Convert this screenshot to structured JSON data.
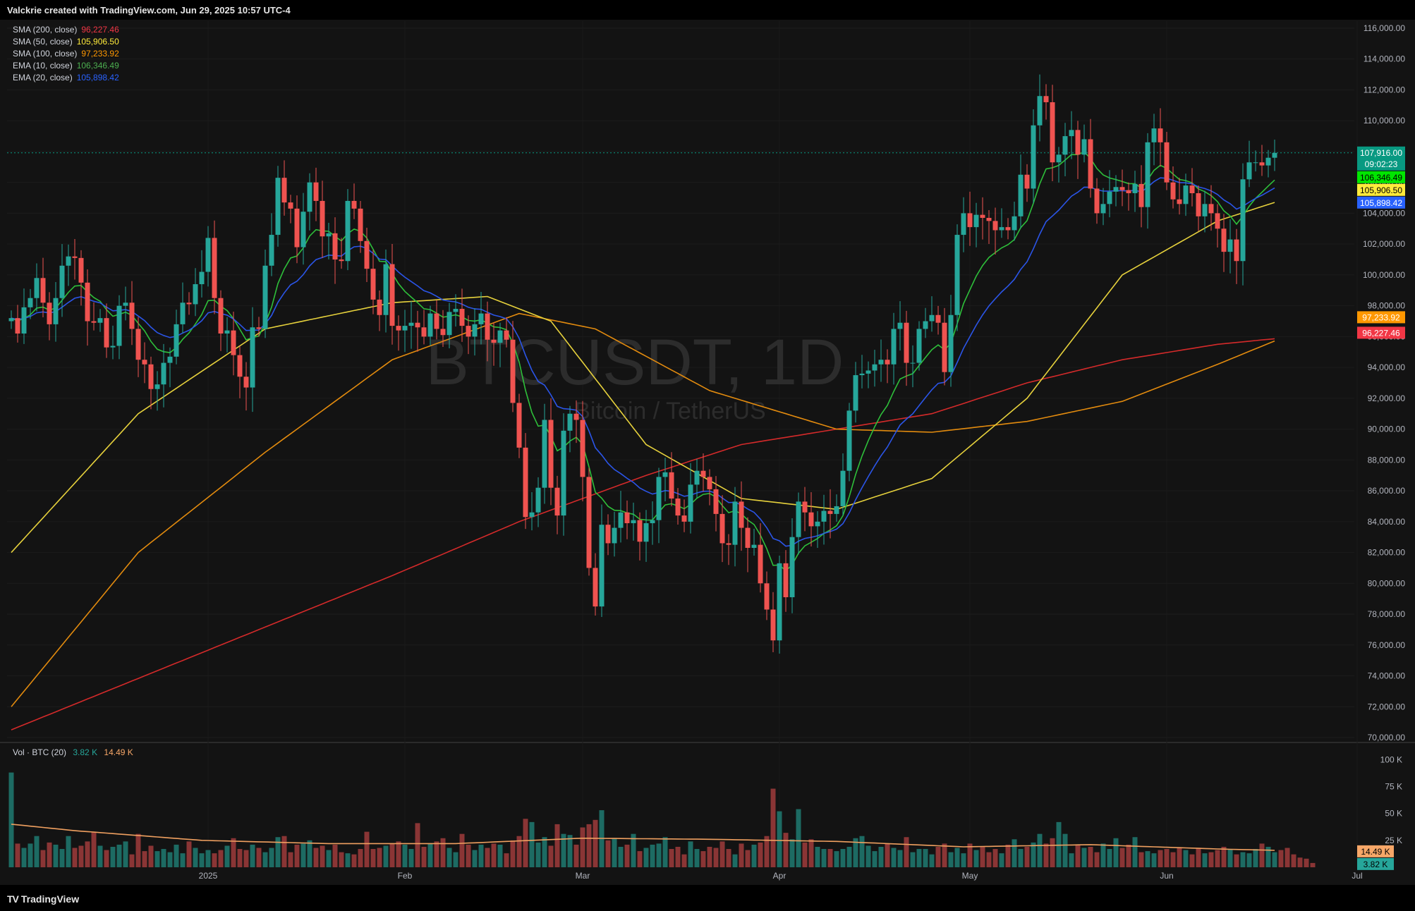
{
  "header": {
    "text": "Valckrie created with TradingView.com, Jun 29, 2025 10:57 UTC-4"
  },
  "footer": {
    "logo_text": "TradingView",
    "logo_mark": "TV"
  },
  "watermark": {
    "symbol": "BTCUSDT, 1D",
    "name": "Bitcoin / TetherUS"
  },
  "legend": [
    {
      "name": "SMA (200, close)",
      "value": "96,227.46",
      "color": "#f23645"
    },
    {
      "name": "SMA (50, close)",
      "value": "105,906.50",
      "color": "#ffeb3b"
    },
    {
      "name": "SMA (100, close)",
      "value": "97,233.92",
      "color": "#ff9800"
    },
    {
      "name": "EMA (10, close)",
      "value": "106,346.49",
      "color": "#4caf50"
    },
    {
      "name": "EMA (20, close)",
      "value": "105,898.42",
      "color": "#2962ff"
    }
  ],
  "volume_legend": {
    "name": "Vol · BTC (20)",
    "value1": "3.82 K",
    "value2": "14.49 K"
  },
  "colors": {
    "up": "#26a69a",
    "down": "#ef5350",
    "background": "#131313",
    "grid": "#1f1f1f"
  },
  "chart_data": {
    "type": "candlestick",
    "symbol": "BTCUSDT",
    "interval": "1D",
    "y_axis": {
      "ylim": [
        70000,
        116000
      ],
      "ticks": [
        "70,000.00",
        "72,000.00",
        "74,000.00",
        "76,000.00",
        "78,000.00",
        "80,000.00",
        "82,000.00",
        "84,000.00",
        "86,000.00",
        "88,000.00",
        "90,000.00",
        "92,000.00",
        "94,000.00",
        "96,000.00",
        "98,000.00",
        "100,000.00",
        "102,000.00",
        "104,000.00",
        "106,000.00",
        "108,000.00",
        "110,000.00",
        "112,000.00",
        "114,000.00",
        "116,000.00"
      ]
    },
    "x_axis": {
      "labels": [
        "2025",
        "Feb",
        "Mar",
        "Apr",
        "May",
        "Jun",
        "Jul"
      ],
      "label_dates": [
        "2025-01-01",
        "2025-02-01",
        "2025-03-01",
        "2025-04-01",
        "2025-05-01",
        "2025-06-01",
        "2025-07-01"
      ],
      "first_date": "2024-12-01",
      "last_date": "2025-07-01"
    },
    "price_close": 107916,
    "countdown": "09:02:23",
    "price_labels": [
      {
        "value": 107916,
        "text": "107,916.00",
        "color": "#089981"
      },
      {
        "value": 106346.49,
        "text": "106,346.49",
        "color": "#00e600"
      },
      {
        "value": 105906.5,
        "text": "105,906.50",
        "color": "#ffeb3b"
      },
      {
        "value": 105898.42,
        "text": "105,898.42",
        "color": "#2962ff"
      },
      {
        "value": 97233.92,
        "text": "97,233.92",
        "color": "#ff9800"
      },
      {
        "value": 96227.46,
        "text": "96,227.46",
        "color": "#f23645"
      }
    ],
    "closes": [
      97200,
      96200,
      97900,
      98500,
      99800,
      98200,
      96800,
      98500,
      100600,
      101200,
      101100,
      99500,
      97000,
      96900,
      97200,
      95300,
      95400,
      98000,
      98200,
      96500,
      94500,
      94200,
      92600,
      92900,
      94300,
      94700,
      96800,
      98200,
      98100,
      99400,
      100200,
      102400,
      98500,
      96200,
      96400,
      94800,
      93400,
      92700,
      96600,
      96500,
      100600,
      102600,
      106300,
      104700,
      104300,
      101800,
      104100,
      106000,
      104800,
      102500,
      102700,
      101000,
      100900,
      104800,
      104300,
      102200,
      100400,
      98400,
      97400,
      100700,
      96700,
      96400,
      96700,
      96900,
      96600,
      96000,
      97500,
      96500,
      96100,
      97600,
      97800,
      96700,
      96000,
      96800,
      97500,
      95800,
      95600,
      96400,
      95800,
      91700,
      88800,
      84300,
      84600,
      86200,
      90600,
      86200,
      84400,
      89900,
      91000,
      90600,
      86900,
      81000,
      78500,
      83800,
      82600,
      83600,
      84600,
      83900,
      84100,
      82700,
      83900,
      84100,
      86900,
      87200,
      85500,
      84400,
      84000,
      86400,
      87300,
      86900,
      86100,
      84500,
      82600,
      82500,
      85300,
      83600,
      82300,
      82500,
      80000,
      78300,
      76300,
      81300,
      79100,
      83000,
      85300,
      84600,
      83700,
      84000,
      84700,
      84500,
      85000,
      87300,
      91200,
      93500,
      93600,
      93800,
      94200,
      94500,
      94200,
      96500,
      96900,
      94300,
      94300,
      96500,
      97000,
      97400,
      96900,
      93700,
      97400,
      102600,
      104000,
      103100,
      103900,
      103700,
      103500,
      102900,
      103100,
      102900,
      103800,
      106500,
      105600,
      109700,
      111600,
      111200,
      107300,
      107800,
      109000,
      109400,
      107800,
      108800,
      105600,
      104000,
      104600,
      105400,
      105700,
      105500,
      105300,
      105900,
      104400,
      108600,
      109500,
      108600,
      106000,
      104900,
      104600,
      105800,
      105300,
      103800,
      104600,
      104000,
      103000,
      101500,
      102300,
      100900,
      106200,
      107300,
      107300,
      107100,
      107600,
      107916
    ],
    "opens": [
      97000,
      97200,
      96200,
      97900,
      98500,
      99800,
      98200,
      96800,
      98500,
      100600,
      101200,
      101100,
      99500,
      97000,
      96900,
      97200,
      95300,
      95400,
      98000,
      98200,
      96500,
      94500,
      94200,
      92600,
      92900,
      94300,
      94700,
      96800,
      98200,
      98100,
      99400,
      100200,
      102400,
      98500,
      96200,
      96400,
      94800,
      93400,
      92700,
      96600,
      96500,
      100600,
      102600,
      106300,
      104700,
      104300,
      101800,
      104100,
      106000,
      104800,
      102500,
      102700,
      101000,
      100900,
      104800,
      104300,
      102200,
      100400,
      98400,
      97400,
      100700,
      96700,
      96400,
      96700,
      96900,
      96600,
      96000,
      97500,
      96500,
      96100,
      97600,
      97800,
      96700,
      96000,
      96800,
      97500,
      95800,
      95600,
      96400,
      95800,
      91700,
      88800,
      84300,
      84600,
      86200,
      90600,
      86200,
      84400,
      89900,
      91000,
      90600,
      86900,
      81000,
      78500,
      83800,
      82600,
      83600,
      84600,
      83900,
      84100,
      82700,
      83900,
      84100,
      86900,
      87200,
      85500,
      84400,
      84000,
      86400,
      87300,
      86900,
      86100,
      84500,
      82600,
      82500,
      85300,
      83600,
      82300,
      82500,
      80000,
      78300,
      76300,
      81300,
      79100,
      83000,
      85300,
      84600,
      83700,
      84000,
      84700,
      84500,
      85000,
      87300,
      91200,
      93500,
      93600,
      93800,
      94200,
      94500,
      94200,
      96500,
      96900,
      94300,
      94300,
      96500,
      97000,
      97400,
      96900,
      93700,
      97400,
      102600,
      104000,
      103100,
      103900,
      103700,
      103500,
      102900,
      103100,
      102900,
      103800,
      106500,
      105600,
      109700,
      111600,
      111200,
      107300,
      107800,
      109000,
      109400,
      107800,
      108800,
      105600,
      104000,
      104600,
      105400,
      105700,
      105500,
      105300,
      105900,
      104400,
      108600,
      109500,
      108600,
      106000,
      104900,
      104600,
      105800,
      105300,
      103800,
      104600,
      104000,
      103000,
      101500,
      102300,
      100900,
      106200,
      107300,
      107300,
      107100,
      107600
    ],
    "sma_200": [
      [
        0,
        70500
      ],
      [
        30,
        75500
      ],
      [
        60,
        80500
      ],
      [
        80,
        84000
      ],
      [
        100,
        87000
      ],
      [
        115,
        89000
      ],
      [
        130,
        90000
      ],
      [
        145,
        91000
      ],
      [
        160,
        93000
      ],
      [
        175,
        94500
      ],
      [
        190,
        95500
      ],
      [
        208,
        96227.46
      ]
    ],
    "sma_100": [
      [
        0,
        72000
      ],
      [
        20,
        82000
      ],
      [
        40,
        88500
      ],
      [
        60,
        94500
      ],
      [
        80,
        97500
      ],
      [
        92,
        96500
      ],
      [
        110,
        92500
      ],
      [
        130,
        90000
      ],
      [
        145,
        89800
      ],
      [
        160,
        90500
      ],
      [
        175,
        91800
      ],
      [
        190,
        94200
      ],
      [
        208,
        97233.92
      ]
    ],
    "sma_50": [
      [
        0,
        82000
      ],
      [
        20,
        91000
      ],
      [
        40,
        96500
      ],
      [
        60,
        98200
      ],
      [
        75,
        98600
      ],
      [
        85,
        97000
      ],
      [
        100,
        89000
      ],
      [
        115,
        85500
      ],
      [
        130,
        84800
      ],
      [
        145,
        86800
      ],
      [
        160,
        92000
      ],
      [
        175,
        100000
      ],
      [
        190,
        103500
      ],
      [
        208,
        105906.5
      ]
    ],
    "volumes": [
      88,
      22,
      18,
      22,
      29,
      16,
      23,
      21,
      17,
      29,
      18,
      20,
      24,
      33,
      20,
      16,
      19,
      21,
      24,
      12,
      31,
      15,
      20,
      15,
      17,
      14,
      21,
      13,
      24,
      18,
      13,
      16,
      13,
      16,
      20,
      27,
      17,
      16,
      21,
      18,
      14,
      18,
      28,
      29,
      14,
      21,
      22,
      25,
      18,
      20,
      16,
      21,
      14,
      13,
      12,
      17,
      33,
      17,
      18,
      20,
      22,
      24,
      21,
      17,
      41,
      19,
      22,
      24,
      27,
      18,
      14,
      31,
      21,
      16,
      21,
      18,
      22,
      21,
      13,
      25,
      29,
      45,
      42,
      23,
      28,
      20,
      40,
      31,
      30,
      21,
      37,
      40,
      44,
      53,
      25,
      27,
      19,
      21,
      31,
      15,
      18,
      21,
      22,
      28,
      17,
      19,
      12,
      24,
      17,
      15,
      19,
      18,
      24,
      17,
      12,
      22,
      16,
      21,
      23,
      29,
      73,
      52,
      32,
      26,
      54,
      23,
      26,
      19,
      17,
      17,
      15,
      17,
      19,
      27,
      29,
      20,
      15,
      19,
      22,
      18,
      16,
      28,
      14,
      17,
      17,
      12,
      19,
      22,
      14,
      18,
      13,
      22,
      16,
      19,
      14,
      17,
      13,
      21,
      26,
      17,
      19,
      23,
      31,
      22,
      27,
      42,
      31,
      13,
      21,
      18,
      19,
      14,
      22,
      17,
      27,
      18,
      21,
      28,
      14,
      15,
      13,
      16,
      17,
      14,
      18,
      16,
      12,
      18,
      13,
      14,
      16,
      19,
      17,
      12,
      14,
      13,
      17,
      22,
      19,
      14,
      16,
      18,
      12,
      9,
      8,
      4
    ],
    "vol_sma": [
      [
        0,
        40
      ],
      [
        10,
        34
      ],
      [
        30,
        25
      ],
      [
        50,
        22
      ],
      [
        70,
        22
      ],
      [
        90,
        27
      ],
      [
        110,
        26
      ],
      [
        130,
        24
      ],
      [
        150,
        19
      ],
      [
        170,
        21
      ],
      [
        190,
        17
      ],
      [
        208,
        14.49
      ]
    ],
    "vol_ticks": [
      "25 K",
      "50 K",
      "75 K",
      "100 K"
    ],
    "vol_labels": [
      {
        "text": "14.49 K",
        "value": 14.49,
        "color": "#f7a768"
      },
      {
        "text": "3.82 K",
        "value": 3.82,
        "color": "#26a69a"
      }
    ]
  }
}
